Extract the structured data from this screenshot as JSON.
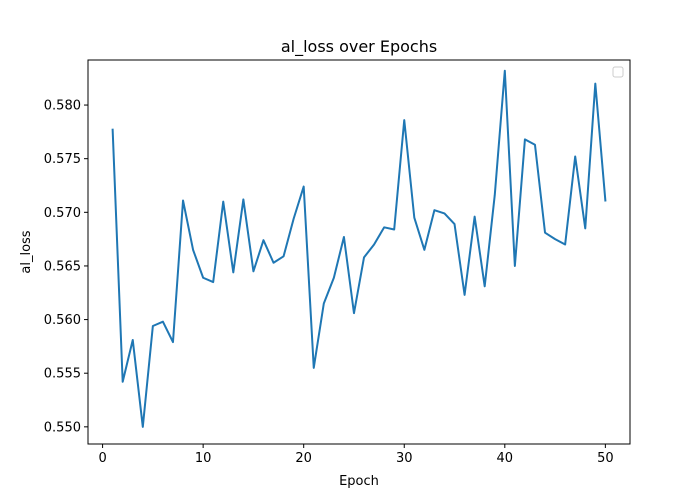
{
  "chart_data": {
    "type": "line",
    "title": "al_loss over Epochs",
    "xlabel": "Epoch",
    "ylabel": "al_loss",
    "xlim": [
      -1.45,
      52.45
    ],
    "ylim": [
      0.5484,
      0.5842
    ],
    "x_ticks": [
      0,
      10,
      20,
      30,
      40,
      50
    ],
    "x_tick_labels": [
      "0",
      "10",
      "20",
      "30",
      "40",
      "50"
    ],
    "y_ticks": [
      0.55,
      0.555,
      0.56,
      0.565,
      0.57,
      0.575,
      0.58
    ],
    "y_tick_labels": [
      "0.550",
      "0.555",
      "0.560",
      "0.565",
      "0.570",
      "0.575",
      "0.580"
    ],
    "grid": false,
    "legend": {
      "placement": "upper right",
      "entries": []
    },
    "series": [
      {
        "color": "#1f77b4",
        "x": [
          1,
          2,
          3,
          4,
          5,
          6,
          7,
          8,
          9,
          10,
          11,
          12,
          13,
          14,
          15,
          16,
          17,
          18,
          19,
          20,
          21,
          22,
          23,
          24,
          25,
          26,
          27,
          28,
          29,
          30,
          31,
          32,
          33,
          34,
          35,
          36,
          37,
          38,
          39,
          40,
          41,
          42,
          43,
          44,
          45,
          46,
          47,
          48,
          49,
          50
        ],
        "y": [
          0.5777,
          0.5542,
          0.5581,
          0.55,
          0.5594,
          0.5598,
          0.5579,
          0.5711,
          0.5665,
          0.5639,
          0.5635,
          0.571,
          0.5644,
          0.5712,
          0.5645,
          0.5674,
          0.5653,
          0.5659,
          0.5694,
          0.5724,
          0.5555,
          0.5615,
          0.5639,
          0.5677,
          0.5606,
          0.5658,
          0.567,
          0.5686,
          0.5684,
          0.5786,
          0.5695,
          0.5665,
          0.5702,
          0.5699,
          0.5689,
          0.5623,
          0.5696,
          0.5631,
          0.5716,
          0.5832,
          0.565,
          0.5768,
          0.5763,
          0.5681,
          0.5675,
          0.567,
          0.5752,
          0.5685,
          0.582,
          0.5711
        ]
      }
    ]
  }
}
